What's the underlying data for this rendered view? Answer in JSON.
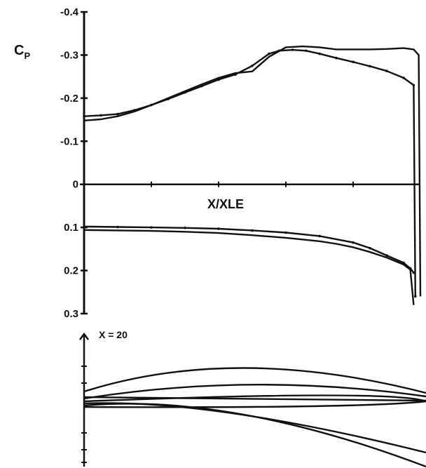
{
  "chart_data": {
    "type": "line",
    "title": "",
    "ylabel": "C",
    "ylabel_sub": "P",
    "xlabel": "X/XLE",
    "annotation": "X = 20",
    "ylim": [
      -0.4,
      0.3
    ],
    "xlim": [
      0,
      1
    ],
    "y_ticks": [
      -0.4,
      -0.3,
      -0.2,
      -0.1,
      0,
      0.1,
      0.2,
      0.3
    ],
    "y_tick_labels": [
      "-0.4",
      "-0.3",
      "-0.2",
      "-0.1",
      "0",
      "0.1",
      "0.2",
      "0.3"
    ],
    "inverted_y": true,
    "grid": false,
    "colors": {
      "ink": "#111111",
      "background": "#ffffff"
    },
    "series": [
      {
        "x": [
          0,
          0.05,
          0.1,
          0.15,
          0.2,
          0.25,
          0.3,
          0.35,
          0.4,
          0.45,
          0.5,
          0.55,
          0.58,
          0.62,
          0.66,
          0.7,
          0.75,
          0.8,
          0.85,
          0.9,
          0.95,
          0.98,
          0.985
        ],
        "y": [
          -0.158,
          -0.16,
          -0.163,
          -0.172,
          -0.184,
          -0.198,
          -0.213,
          -0.228,
          -0.243,
          -0.255,
          -0.275,
          -0.303,
          -0.31,
          -0.312,
          -0.31,
          -0.303,
          -0.293,
          -0.284,
          -0.274,
          -0.263,
          -0.247,
          -0.23,
          0.26
        ],
        "marker": "dot"
      },
      {
        "x": [
          0,
          0.05,
          0.1,
          0.15,
          0.2,
          0.25,
          0.3,
          0.35,
          0.4,
          0.45,
          0.5,
          0.55,
          0.6,
          0.65,
          0.7,
          0.75,
          0.8,
          0.85,
          0.9,
          0.95,
          0.98,
          0.995,
          1.0
        ],
        "y": [
          -0.148,
          -0.151,
          -0.158,
          -0.169,
          -0.184,
          -0.2,
          -0.216,
          -0.232,
          -0.247,
          -0.258,
          -0.262,
          -0.296,
          -0.318,
          -0.32,
          -0.318,
          -0.313,
          -0.313,
          -0.313,
          -0.314,
          -0.316,
          -0.313,
          -0.3,
          0.26
        ],
        "marker": "none"
      },
      {
        "x": [
          0,
          0.1,
          0.2,
          0.3,
          0.4,
          0.5,
          0.6,
          0.7,
          0.75,
          0.8,
          0.85,
          0.9,
          0.95,
          0.97,
          0.98
        ],
        "y": [
          0.106,
          0.107,
          0.108,
          0.11,
          0.113,
          0.118,
          0.124,
          0.132,
          0.138,
          0.146,
          0.157,
          0.17,
          0.186,
          0.198,
          0.28
        ],
        "marker": "none"
      },
      {
        "x": [
          0,
          0.1,
          0.2,
          0.3,
          0.4,
          0.5,
          0.6,
          0.7,
          0.8,
          0.85,
          0.9,
          0.95,
          0.97,
          0.98
        ],
        "y": [
          0.098,
          0.099,
          0.1,
          0.101,
          0.103,
          0.107,
          0.112,
          0.12,
          0.135,
          0.148,
          0.165,
          0.182,
          0.195,
          0.205
        ],
        "marker": "dot"
      }
    ]
  }
}
